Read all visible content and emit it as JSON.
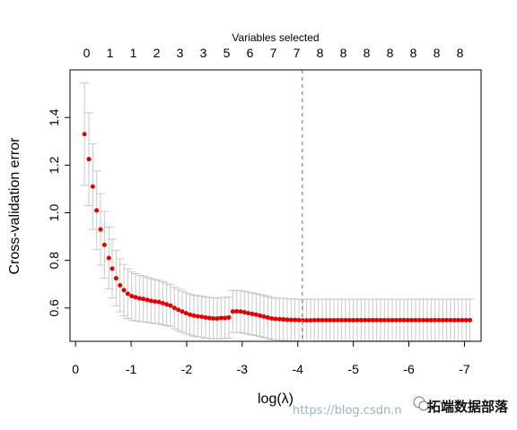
{
  "chart_data": {
    "type": "scatter",
    "title": "",
    "top_axis_title": "Variables selected",
    "xlabel": "log(λ)",
    "ylabel": "Cross-validation error",
    "xlim": [
      0.1,
      -7.3
    ],
    "ylim": [
      0.46,
      1.6
    ],
    "x_ticks": [
      0,
      -1,
      -2,
      -3,
      -4,
      -5,
      -6,
      -7
    ],
    "x_tick_labels": [
      "0",
      "-1",
      "-2",
      "-3",
      "-4",
      "-5",
      "-6",
      "-7"
    ],
    "y_ticks": [
      0.6,
      0.8,
      1.0,
      1.2,
      1.4
    ],
    "y_tick_labels": [
      "0.6",
      "0.8",
      "1.0",
      "1.2",
      "1.4"
    ],
    "top_ticks": [
      -0.2,
      -0.62,
      -1.04,
      -1.46,
      -1.88,
      -2.3,
      -2.72,
      -3.14,
      -3.56,
      -3.98,
      -4.4,
      -4.82,
      -5.24,
      -5.66,
      -6.08,
      -6.5,
      -6.92
    ],
    "top_tick_labels": [
      "0",
      "1",
      "1",
      "2",
      "3",
      "3",
      "5",
      "6",
      "7",
      "7",
      "8",
      "8",
      "8",
      "8",
      "8",
      "8",
      "8"
    ],
    "vline_x": -4.08,
    "point_color": "#e00000",
    "errorbar_color": "#c8c8c8",
    "vline_color": "#999999",
    "series": [
      {
        "x": [
          -0.16,
          -0.24,
          -0.31,
          -0.38,
          -0.45,
          -0.52,
          -0.6,
          -0.66,
          -0.73,
          -0.8,
          -0.87,
          -0.94,
          -1.01,
          -1.08,
          -1.15,
          -1.22,
          -1.29,
          -1.36,
          -1.43,
          -1.5,
          -1.57,
          -1.64,
          -1.71,
          -1.78,
          -1.85,
          -1.92,
          -1.99,
          -2.06,
          -2.13,
          -2.2,
          -2.27,
          -2.34,
          -2.41,
          -2.48,
          -2.55,
          -2.62,
          -2.69,
          -2.76,
          -2.83,
          -2.9,
          -2.97,
          -3.04,
          -3.11,
          -3.18,
          -3.25,
          -3.32,
          -3.39,
          -3.46,
          -3.53,
          -3.6,
          -3.67,
          -3.74,
          -3.81,
          -3.88,
          -3.95,
          -4.02,
          -4.09,
          -4.16,
          -4.23,
          -4.3,
          -4.37,
          -4.44,
          -4.51,
          -4.58,
          -4.65,
          -4.72,
          -4.79,
          -4.86,
          -4.93,
          -5.0,
          -5.07,
          -5.14,
          -5.21,
          -5.28,
          -5.35,
          -5.42,
          -5.49,
          -5.56,
          -5.63,
          -5.7,
          -5.77,
          -5.84,
          -5.91,
          -5.98,
          -6.05,
          -6.12,
          -6.19,
          -6.26,
          -6.33,
          -6.4,
          -6.47,
          -6.54,
          -6.61,
          -6.68,
          -6.75,
          -6.82,
          -6.89,
          -6.96,
          -7.03,
          -7.1
        ],
        "y": [
          1.33,
          1.225,
          1.11,
          1.01,
          0.93,
          0.865,
          0.81,
          0.765,
          0.725,
          0.695,
          0.675,
          0.66,
          0.65,
          0.645,
          0.64,
          0.638,
          0.634,
          0.63,
          0.627,
          0.625,
          0.62,
          0.615,
          0.61,
          0.6,
          0.592,
          0.585,
          0.578,
          0.572,
          0.568,
          0.565,
          0.563,
          0.56,
          0.558,
          0.556,
          0.556,
          0.558,
          0.558,
          0.56,
          0.585,
          0.586,
          0.585,
          0.582,
          0.578,
          0.575,
          0.572,
          0.568,
          0.564,
          0.56,
          0.556,
          0.554,
          0.553,
          0.552,
          0.551,
          0.55,
          0.55,
          0.549,
          0.548,
          0.548,
          0.548,
          0.549,
          0.549,
          0.549,
          0.549,
          0.549,
          0.549,
          0.549,
          0.549,
          0.549,
          0.549,
          0.549,
          0.549,
          0.549,
          0.549,
          0.549,
          0.549,
          0.549,
          0.549,
          0.549,
          0.549,
          0.549,
          0.549,
          0.549,
          0.549,
          0.549,
          0.549,
          0.549,
          0.549,
          0.549,
          0.549,
          0.549,
          0.549,
          0.549,
          0.549,
          0.549,
          0.549,
          0.549,
          0.549,
          0.549,
          0.549,
          0.549
        ],
        "err": [
          0.215,
          0.195,
          0.18,
          0.165,
          0.15,
          0.14,
          0.13,
          0.123,
          0.116,
          0.111,
          0.108,
          0.104,
          0.101,
          0.099,
          0.097,
          0.096,
          0.094,
          0.093,
          0.092,
          0.091,
          0.09,
          0.089,
          0.088,
          0.087,
          0.087,
          0.086,
          0.086,
          0.086,
          0.086,
          0.086,
          0.086,
          0.086,
          0.086,
          0.086,
          0.086,
          0.086,
          0.086,
          0.086,
          0.088,
          0.088,
          0.088,
          0.088,
          0.088,
          0.088,
          0.088,
          0.088,
          0.088,
          0.088,
          0.088,
          0.088,
          0.088,
          0.088,
          0.088,
          0.088,
          0.088,
          0.088,
          0.088,
          0.088,
          0.088,
          0.088,
          0.088,
          0.088,
          0.088,
          0.088,
          0.088,
          0.088,
          0.088,
          0.088,
          0.088,
          0.088,
          0.088,
          0.088,
          0.088,
          0.088,
          0.088,
          0.088,
          0.088,
          0.088,
          0.088,
          0.088,
          0.088,
          0.088,
          0.088,
          0.088,
          0.088,
          0.088,
          0.088,
          0.088,
          0.088,
          0.088,
          0.088,
          0.088,
          0.088,
          0.088,
          0.088,
          0.088,
          0.088,
          0.088,
          0.088,
          0.088
        ]
      }
    ]
  },
  "watermark": {
    "url_text": "https://blog.csdn.n",
    "brand_text": "拓端数据部落"
  }
}
